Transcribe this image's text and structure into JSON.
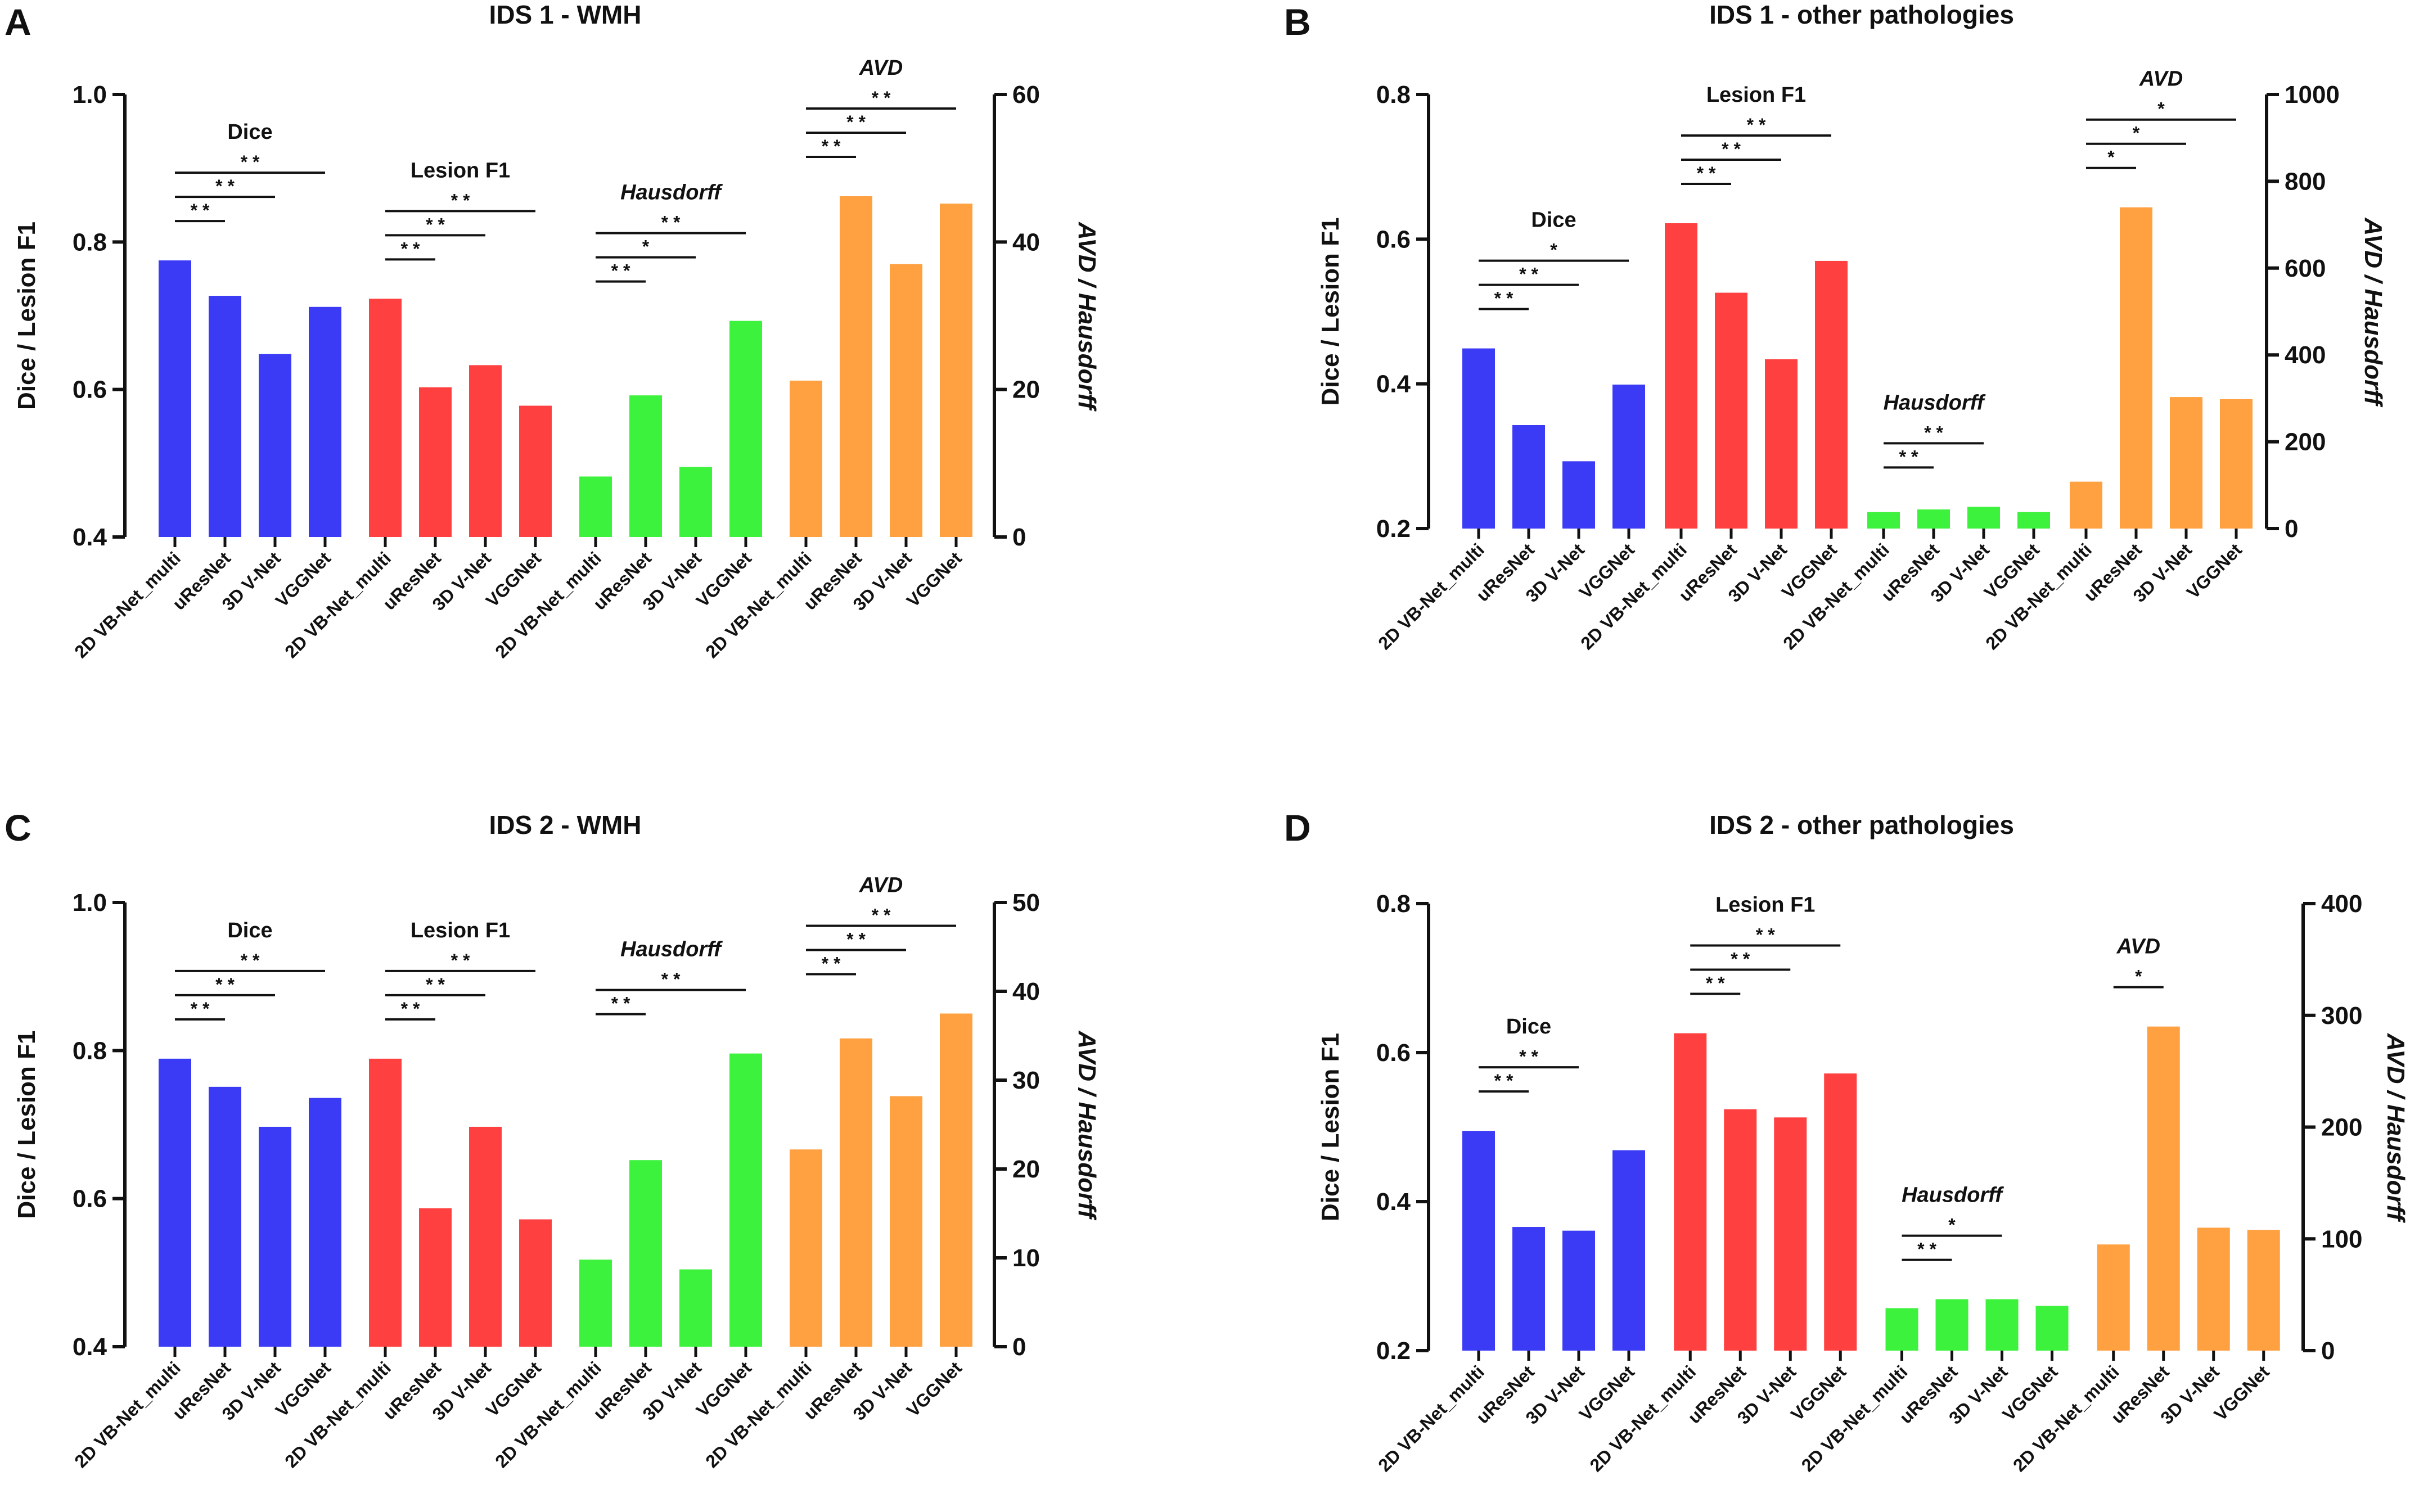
{
  "colors": {
    "Dice": "#3b3bf5",
    "Lesion F1": "#ff4040",
    "Hausdorff": "#3df23d",
    "AVD": "#ffa041"
  },
  "chart_data": [
    {
      "type": "bar",
      "panel": "A",
      "title": "IDS 1 - WMH",
      "ylabel": "Dice / Lesion F1",
      "y2label": "AVD / Hausdorff",
      "ylim": [
        0.4,
        1.0
      ],
      "yticks": [
        "0.4",
        "0.6",
        "0.8",
        "1.0"
      ],
      "y2lim": [
        0,
        60
      ],
      "y2ticks": [
        "0",
        "20",
        "40",
        "60"
      ],
      "categories": [
        "2D VB-Net_multi",
        "uResNet",
        "3D V-Net",
        "VGGNet"
      ],
      "groups": [
        {
          "name": "Dice",
          "axis": "left",
          "italic": false,
          "values": [
            0.775,
            0.727,
            0.648,
            0.712
          ],
          "sig": [
            {
              "to": 1,
              "stars": "* *"
            },
            {
              "to": 2,
              "stars": "* *"
            },
            {
              "to": 3,
              "stars": "* *"
            }
          ]
        },
        {
          "name": "Lesion F1",
          "axis": "left",
          "italic": false,
          "values": [
            0.723,
            0.603,
            0.633,
            0.578
          ],
          "sig": [
            {
              "to": 1,
              "stars": "* *"
            },
            {
              "to": 2,
              "stars": "* *"
            },
            {
              "to": 3,
              "stars": "* *"
            }
          ]
        },
        {
          "name": "Hausdorff",
          "axis": "right",
          "italic": true,
          "values": [
            8.2,
            19.2,
            9.5,
            29.3
          ],
          "sig": [
            {
              "to": 1,
              "stars": "* *"
            },
            {
              "to": 2,
              "stars": "*"
            },
            {
              "to": 3,
              "stars": "* *"
            }
          ]
        },
        {
          "name": "AVD",
          "axis": "right",
          "italic": true,
          "values": [
            21.2,
            46.2,
            37.0,
            45.2
          ],
          "sig": [
            {
              "to": 1,
              "stars": "* *"
            },
            {
              "to": 2,
              "stars": "* *"
            },
            {
              "to": 3,
              "stars": "* *"
            }
          ]
        }
      ]
    },
    {
      "type": "bar",
      "panel": "B",
      "title": "IDS 1 - other pathologies",
      "ylabel": "Dice / Lesion F1",
      "y2label": "AVD / Hausdorff",
      "ylim": [
        0.2,
        0.8
      ],
      "yticks": [
        "0.2",
        "0.4",
        "0.6",
        "0.8"
      ],
      "y2lim": [
        0,
        1000
      ],
      "y2ticks": [
        "0",
        "200",
        "400",
        "600",
        "800",
        "1000"
      ],
      "categories": [
        "2D VB-Net_multi",
        "uResNet",
        "3D V-Net",
        "VGGNet"
      ],
      "groups": [
        {
          "name": "Dice",
          "axis": "left",
          "italic": false,
          "values": [
            0.449,
            0.343,
            0.293,
            0.399
          ],
          "sig": [
            {
              "to": 1,
              "stars": "* *"
            },
            {
              "to": 2,
              "stars": "* *"
            },
            {
              "to": 3,
              "stars": "*"
            }
          ]
        },
        {
          "name": "Lesion F1",
          "axis": "left",
          "italic": false,
          "values": [
            0.622,
            0.526,
            0.434,
            0.57
          ],
          "sig": [
            {
              "to": 1,
              "stars": "* *"
            },
            {
              "to": 2,
              "stars": "* *"
            },
            {
              "to": 3,
              "stars": "* *"
            }
          ]
        },
        {
          "name": "Hausdorff",
          "axis": "right",
          "italic": true,
          "values": [
            38,
            44,
            50,
            38
          ],
          "sig": [
            {
              "to": 1,
              "stars": "* *"
            },
            {
              "to": 2,
              "stars": "* *"
            }
          ]
        },
        {
          "name": "AVD",
          "axis": "right",
          "italic": true,
          "values": [
            108,
            740,
            303,
            298
          ],
          "sig": [
            {
              "to": 1,
              "stars": "*"
            },
            {
              "to": 2,
              "stars": "*"
            },
            {
              "to": 3,
              "stars": "*"
            }
          ]
        }
      ]
    },
    {
      "type": "bar",
      "panel": "C",
      "title": "IDS 2 - WMH",
      "ylabel": "Dice / Lesion F1",
      "y2label": "AVD / Hausdorff",
      "ylim": [
        0.4,
        1.0
      ],
      "yticks": [
        "0.4",
        "0.6",
        "0.8",
        "1.0"
      ],
      "y2lim": [
        0,
        50
      ],
      "y2ticks": [
        "0",
        "10",
        "20",
        "30",
        "40",
        "50"
      ],
      "categories": [
        "2D VB-Net_multi",
        "uResNet",
        "3D V-Net",
        "VGGNet"
      ],
      "groups": [
        {
          "name": "Dice",
          "axis": "left",
          "italic": false,
          "values": [
            0.789,
            0.751,
            0.697,
            0.736
          ],
          "sig": [
            {
              "to": 1,
              "stars": "* *"
            },
            {
              "to": 2,
              "stars": "* *"
            },
            {
              "to": 3,
              "stars": "* *"
            }
          ]
        },
        {
          "name": "Lesion F1",
          "axis": "left",
          "italic": false,
          "values": [
            0.789,
            0.587,
            0.697,
            0.572
          ],
          "sig": [
            {
              "to": 1,
              "stars": "* *"
            },
            {
              "to": 2,
              "stars": "* *"
            },
            {
              "to": 3,
              "stars": "* *"
            }
          ]
        },
        {
          "name": "Hausdorff",
          "axis": "right",
          "italic": true,
          "values": [
            9.8,
            21.0,
            8.7,
            33.0
          ],
          "sig": [
            {
              "to": 1,
              "stars": "* *"
            },
            {
              "to": 3,
              "stars": "* *"
            }
          ]
        },
        {
          "name": "AVD",
          "axis": "right",
          "italic": true,
          "values": [
            22.2,
            34.7,
            28.2,
            37.5
          ],
          "sig": [
            {
              "to": 1,
              "stars": "* *"
            },
            {
              "to": 2,
              "stars": "* *"
            },
            {
              "to": 3,
              "stars": "* *"
            }
          ]
        }
      ]
    },
    {
      "type": "bar",
      "panel": "D",
      "title": "IDS 2 - other pathologies",
      "ylabel": "Dice / Lesion F1",
      "y2label": "AVD / Hausdorff",
      "ylim": [
        0.2,
        0.8
      ],
      "yticks": [
        "0.2",
        "0.4",
        "0.6",
        "0.8"
      ],
      "y2lim": [
        0,
        400
      ],
      "y2ticks": [
        "0",
        "100",
        "200",
        "300",
        "400"
      ],
      "categories": [
        "2D VB-Net_multi",
        "uResNet",
        "3D V-Net",
        "VGGNet"
      ],
      "groups": [
        {
          "name": "Dice",
          "axis": "left",
          "italic": false,
          "values": [
            0.495,
            0.366,
            0.361,
            0.469
          ],
          "sig": [
            {
              "to": 1,
              "stars": "* *"
            },
            {
              "to": 2,
              "stars": "* *"
            }
          ]
        },
        {
          "name": "Lesion F1",
          "axis": "left",
          "italic": false,
          "values": [
            0.626,
            0.524,
            0.513,
            0.572
          ],
          "sig": [
            {
              "to": 1,
              "stars": "* *"
            },
            {
              "to": 2,
              "stars": "* *"
            },
            {
              "to": 3,
              "stars": "* *"
            }
          ]
        },
        {
          "name": "Hausdorff",
          "axis": "right",
          "italic": true,
          "values": [
            38,
            46,
            46,
            40
          ],
          "sig": [
            {
              "to": 1,
              "stars": "* *"
            },
            {
              "to": 2,
              "stars": "*"
            }
          ]
        },
        {
          "name": "AVD",
          "axis": "right",
          "italic": true,
          "values": [
            95,
            290,
            110,
            108
          ],
          "sig": [
            {
              "to": 1,
              "stars": "*"
            }
          ]
        }
      ]
    }
  ]
}
